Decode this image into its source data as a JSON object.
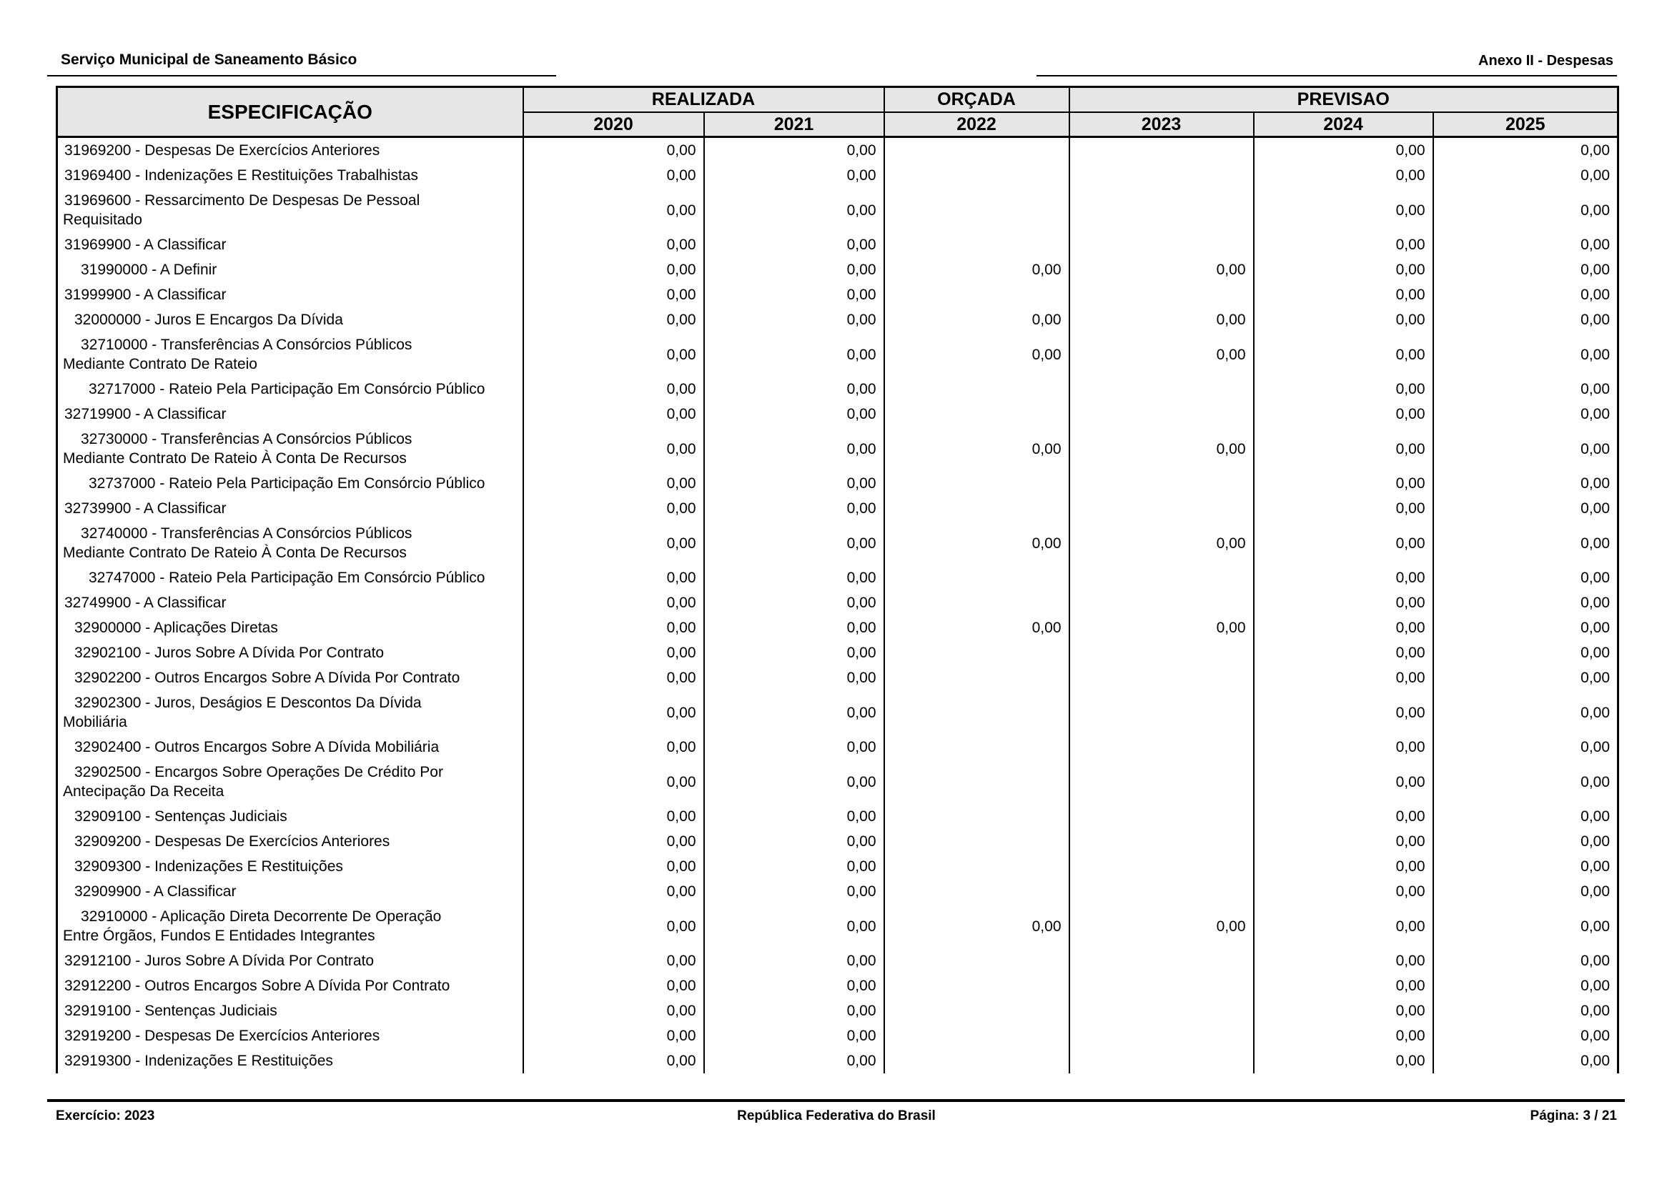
{
  "page": {
    "title_left": "Serviço Municipal de Saneamento Básico",
    "title_right": "Anexo II - Despesas"
  },
  "colors": {
    "header_bg": "#e6e6e6",
    "border": "#000000",
    "text": "#000000"
  },
  "table": {
    "spec_header": "ESPECIFICAÇÃO",
    "groups": [
      {
        "label": "REALIZADA",
        "span": 2
      },
      {
        "label": "ORÇADA",
        "span": 1
      },
      {
        "label": "PREVISAO",
        "span": 3
      }
    ],
    "years": [
      "2020",
      "2021",
      "2022",
      "2023",
      "2024",
      "2025"
    ],
    "rows": [
      {
        "spec": "31969200 - Despesas De Exercícios Anteriores",
        "indent": 0,
        "values": [
          "0,00",
          "0,00",
          "",
          "",
          "0,00",
          "0,00"
        ]
      },
      {
        "spec": "31969400 - Indenizações E Restituições Trabalhistas",
        "indent": 0,
        "values": [
          "0,00",
          "0,00",
          "",
          "",
          "0,00",
          "0,00"
        ]
      },
      {
        "spec": "31969600 - Ressarcimento De Despesas De Pessoal\nRequisitado",
        "indent": 0,
        "values": [
          "0,00",
          "0,00",
          "",
          "",
          "0,00",
          "0,00"
        ]
      },
      {
        "spec": "31969900 - A Classificar",
        "indent": 0,
        "values": [
          "0,00",
          "0,00",
          "",
          "",
          "0,00",
          "0,00"
        ]
      },
      {
        "spec": "31990000 - A Definir",
        "indent": 2,
        "values": [
          "0,00",
          "0,00",
          "0,00",
          "0,00",
          "0,00",
          "0,00"
        ]
      },
      {
        "spec": "31999900 - A Classificar",
        "indent": 0,
        "values": [
          "0,00",
          "0,00",
          "",
          "",
          "0,00",
          "0,00"
        ]
      },
      {
        "spec": "32000000 - Juros E Encargos Da Dívida",
        "indent": 1,
        "values": [
          "0,00",
          "0,00",
          "0,00",
          "0,00",
          "0,00",
          "0,00"
        ]
      },
      {
        "spec": "32710000 - Transferências A Consórcios Públicos\nMediante Contrato De Rateio",
        "indent": 2,
        "values": [
          "0,00",
          "0,00",
          "0,00",
          "0,00",
          "0,00",
          "0,00"
        ]
      },
      {
        "spec": "32717000 - Rateio Pela Participação Em Consórcio Público",
        "indent": 3,
        "values": [
          "0,00",
          "0,00",
          "",
          "",
          "0,00",
          "0,00"
        ]
      },
      {
        "spec": "32719900 - A Classificar",
        "indent": 0,
        "values": [
          "0,00",
          "0,00",
          "",
          "",
          "0,00",
          "0,00"
        ]
      },
      {
        "spec": "32730000 - Transferências A Consórcios Públicos\nMediante Contrato De Rateio À Conta De Recursos",
        "indent": 2,
        "values": [
          "0,00",
          "0,00",
          "0,00",
          "0,00",
          "0,00",
          "0,00"
        ]
      },
      {
        "spec": "32737000 - Rateio Pela Participação Em Consórcio Público",
        "indent": 3,
        "values": [
          "0,00",
          "0,00",
          "",
          "",
          "0,00",
          "0,00"
        ]
      },
      {
        "spec": "32739900 - A Classificar",
        "indent": 0,
        "values": [
          "0,00",
          "0,00",
          "",
          "",
          "0,00",
          "0,00"
        ]
      },
      {
        "spec": "32740000 - Transferências A Consórcios Públicos\nMediante Contrato De Rateio À Conta De Recursos",
        "indent": 2,
        "values": [
          "0,00",
          "0,00",
          "0,00",
          "0,00",
          "0,00",
          "0,00"
        ]
      },
      {
        "spec": "32747000 - Rateio Pela Participação Em Consórcio Público",
        "indent": 3,
        "values": [
          "0,00",
          "0,00",
          "",
          "",
          "0,00",
          "0,00"
        ]
      },
      {
        "spec": "32749900 - A Classificar",
        "indent": 0,
        "values": [
          "0,00",
          "0,00",
          "",
          "",
          "0,00",
          "0,00"
        ]
      },
      {
        "spec": "32900000 - Aplicações Diretas",
        "indent": 1,
        "values": [
          "0,00",
          "0,00",
          "0,00",
          "0,00",
          "0,00",
          "0,00"
        ]
      },
      {
        "spec": "32902100 - Juros Sobre A Dívida Por Contrato",
        "indent": 1,
        "values": [
          "0,00",
          "0,00",
          "",
          "",
          "0,00",
          "0,00"
        ]
      },
      {
        "spec": "32902200 - Outros Encargos Sobre A Dívida Por Contrato",
        "indent": 1,
        "values": [
          "0,00",
          "0,00",
          "",
          "",
          "0,00",
          "0,00"
        ]
      },
      {
        "spec": "32902300 - Juros, Deságios E Descontos Da Dívida\nMobiliária",
        "indent": 1,
        "values": [
          "0,00",
          "0,00",
          "",
          "",
          "0,00",
          "0,00"
        ]
      },
      {
        "spec": "32902400 - Outros Encargos Sobre A Dívida Mobiliária",
        "indent": 1,
        "values": [
          "0,00",
          "0,00",
          "",
          "",
          "0,00",
          "0,00"
        ]
      },
      {
        "spec": "32902500 - Encargos Sobre Operações De Crédito Por\nAntecipação Da Receita",
        "indent": 1,
        "values": [
          "0,00",
          "0,00",
          "",
          "",
          "0,00",
          "0,00"
        ]
      },
      {
        "spec": "32909100 - Sentenças Judiciais",
        "indent": 1,
        "values": [
          "0,00",
          "0,00",
          "",
          "",
          "0,00",
          "0,00"
        ]
      },
      {
        "spec": "32909200 - Despesas De Exercícios Anteriores",
        "indent": 1,
        "values": [
          "0,00",
          "0,00",
          "",
          "",
          "0,00",
          "0,00"
        ]
      },
      {
        "spec": "32909300 - Indenizações E Restituições",
        "indent": 1,
        "values": [
          "0,00",
          "0,00",
          "",
          "",
          "0,00",
          "0,00"
        ]
      },
      {
        "spec": "32909900 - A Classificar",
        "indent": 1,
        "values": [
          "0,00",
          "0,00",
          "",
          "",
          "0,00",
          "0,00"
        ]
      },
      {
        "spec": "32910000 - Aplicação Direta Decorrente De Operação\nEntre Órgãos, Fundos E Entidades Integrantes",
        "indent": 2,
        "values": [
          "0,00",
          "0,00",
          "0,00",
          "0,00",
          "0,00",
          "0,00"
        ]
      },
      {
        "spec": "32912100 - Juros Sobre A Dívida Por Contrato",
        "indent": 0,
        "values": [
          "0,00",
          "0,00",
          "",
          "",
          "0,00",
          "0,00"
        ]
      },
      {
        "spec": "32912200 - Outros Encargos Sobre A Dívida Por Contrato",
        "indent": 0,
        "values": [
          "0,00",
          "0,00",
          "",
          "",
          "0,00",
          "0,00"
        ]
      },
      {
        "spec": "32919100 - Sentenças Judiciais",
        "indent": 0,
        "values": [
          "0,00",
          "0,00",
          "",
          "",
          "0,00",
          "0,00"
        ]
      },
      {
        "spec": "32919200 - Despesas De Exercícios Anteriores",
        "indent": 0,
        "values": [
          "0,00",
          "0,00",
          "",
          "",
          "0,00",
          "0,00"
        ]
      },
      {
        "spec": "32919300 - Indenizações E Restituições",
        "indent": 0,
        "values": [
          "0,00",
          "0,00",
          "",
          "",
          "0,00",
          "0,00"
        ]
      }
    ]
  },
  "footer": {
    "left": "Exercício: 2023",
    "center": "República Federativa do Brasil",
    "right": "Página: 3 / 21"
  }
}
